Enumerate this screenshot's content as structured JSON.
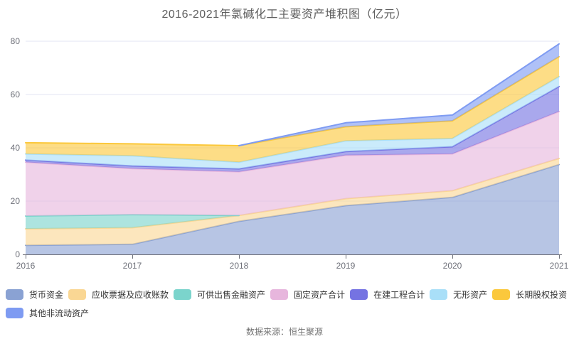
{
  "title": "2016-2021年氯碱化工主要资产堆积图（亿元）",
  "source": "数据来源：恒生聚源",
  "colors": {
    "axis": "#6E7079",
    "grid": "#E3E6F3",
    "tick_label": "#6E7079",
    "title_text": "#5e5e5e",
    "legend_text": "#333333",
    "source_text": "#737373"
  },
  "chart_data": {
    "type": "area",
    "stacked": true,
    "title": "2016-2021年氯碱化工主要资产堆积图（亿元）",
    "x": [
      2016,
      2017,
      2018,
      2019,
      2020,
      2021
    ],
    "xlabel": "",
    "ylabel": "",
    "ylim": [
      0,
      80
    ],
    "yticks": [
      0,
      20,
      40,
      60,
      80
    ],
    "grid": true,
    "legend_position": "bottom",
    "area_opacity": 0.62,
    "series": [
      {
        "name": "货币资金",
        "color": "#8AA2D3",
        "values": [
          3.4,
          3.8,
          12.4,
          18.3,
          21.4,
          33.7
        ]
      },
      {
        "name": "应收票据及应收账款",
        "color": "#FAD794",
        "values": [
          6.2,
          6.2,
          2.2,
          2.6,
          2.5,
          2.3
        ]
      },
      {
        "name": "可供出售金融资产",
        "color": "#7BD4CC",
        "values": [
          4.8,
          4.9,
          0,
          0,
          0,
          0
        ]
      },
      {
        "name": "固定资产合计",
        "color": "#E7B6DD",
        "values": [
          20.2,
          17.3,
          16.4,
          16.3,
          13.8,
          17.6
        ]
      },
      {
        "name": "在建工程合计",
        "color": "#7573E2",
        "values": [
          0.8,
          1.0,
          1.1,
          1.4,
          2.7,
          9.4
        ]
      },
      {
        "name": "无形资产",
        "color": "#A9DFF8",
        "values": [
          2.3,
          3.8,
          2.5,
          4.0,
          3.1,
          3.7
        ]
      },
      {
        "name": "长期股权投资",
        "color": "#FBC83C",
        "values": [
          4.2,
          4.5,
          6.2,
          5.3,
          6.6,
          7.5
        ]
      },
      {
        "name": "其他非流动资产",
        "color": "#7E9BF2",
        "values": [
          0,
          0,
          0,
          1.5,
          2.2,
          4.8
        ]
      }
    ],
    "legend_rows": [
      [
        0,
        1,
        2,
        3,
        4,
        5,
        6
      ],
      [
        7
      ]
    ]
  }
}
